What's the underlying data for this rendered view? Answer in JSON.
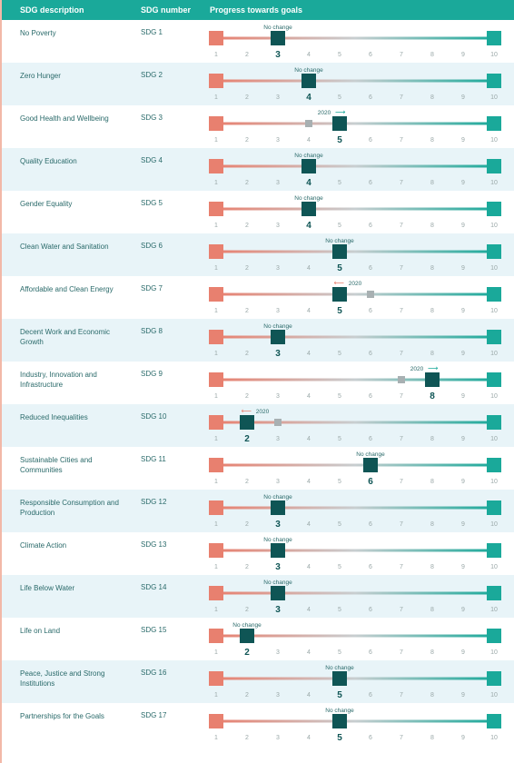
{
  "header": {
    "col1": "SDG description",
    "col2": "SDG number",
    "col3": "Progress towards goals"
  },
  "chart_data": {
    "type": "scatter",
    "scale_min": 1,
    "scale_max": 10,
    "ticks": [
      1,
      2,
      3,
      4,
      5,
      6,
      7,
      8,
      9,
      10
    ],
    "colors": {
      "low": "#e8806f",
      "mid": "#c8ced0",
      "high": "#1aa99a",
      "marker": "#0f5555",
      "prior": "#a8b0b2"
    },
    "rows": [
      {
        "desc": "No Poverty",
        "num": "SDG 1",
        "value": 3,
        "note": "No change",
        "prior": null,
        "dir": ""
      },
      {
        "desc": "Zero Hunger",
        "num": "SDG 2",
        "value": 4,
        "note": "No change",
        "prior": null,
        "dir": ""
      },
      {
        "desc": "Good Health and Wellbeing",
        "num": "SDG 3",
        "value": 5,
        "note": "2020",
        "prior": 4,
        "dir": "right"
      },
      {
        "desc": "Quality Education",
        "num": "SDG 4",
        "value": 4,
        "note": "No change",
        "prior": null,
        "dir": ""
      },
      {
        "desc": "Gender Equality",
        "num": "SDG 5",
        "value": 4,
        "note": "No change",
        "prior": null,
        "dir": ""
      },
      {
        "desc": "Clean Water and Sanitation",
        "num": "SDG 6",
        "value": 5,
        "note": "No change",
        "prior": null,
        "dir": ""
      },
      {
        "desc": "Affordable and Clean Energy",
        "num": "SDG 7",
        "value": 5,
        "note": "2020",
        "prior": 6,
        "dir": "left"
      },
      {
        "desc": "Decent Work and Economic Growth",
        "num": "SDG 8",
        "value": 3,
        "note": "No change",
        "prior": null,
        "dir": ""
      },
      {
        "desc": "Industry, Innovation and Infrastructure",
        "num": "SDG 9",
        "value": 8,
        "note": "2020",
        "prior": 7,
        "dir": "right"
      },
      {
        "desc": "Reduced Inequalities",
        "num": "SDG 10",
        "value": 2,
        "note": "2020",
        "prior": 3,
        "dir": "left"
      },
      {
        "desc": "Sustainable Cities and Communities",
        "num": "SDG 11",
        "value": 6,
        "note": "No change",
        "prior": null,
        "dir": ""
      },
      {
        "desc": "Responsible Consumption and Production",
        "num": "SDG 12",
        "value": 3,
        "note": "No change",
        "prior": null,
        "dir": ""
      },
      {
        "desc": "Climate Action",
        "num": "SDG 13",
        "value": 3,
        "note": "No change",
        "prior": null,
        "dir": ""
      },
      {
        "desc": "Life Below Water",
        "num": "SDG 14",
        "value": 3,
        "note": "No change",
        "prior": null,
        "dir": ""
      },
      {
        "desc": "Life on Land",
        "num": "SDG 15",
        "value": 2,
        "note": "No change",
        "prior": null,
        "dir": ""
      },
      {
        "desc": "Peace, Justice and Strong Institutions",
        "num": "SDG 16",
        "value": 5,
        "note": "No change",
        "prior": null,
        "dir": ""
      },
      {
        "desc": "Partnerships for the Goals",
        "num": "SDG 17",
        "value": 5,
        "note": "No change",
        "prior": null,
        "dir": ""
      }
    ]
  }
}
